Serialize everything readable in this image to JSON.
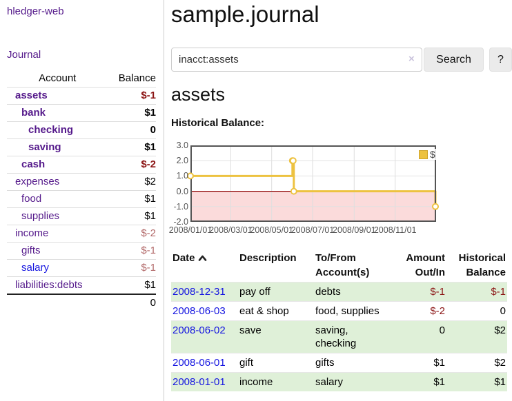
{
  "sidebar": {
    "brand": "hledger-web",
    "nav_journal": "Journal",
    "accounts_table": {
      "col_account": "Account",
      "col_balance": "Balance",
      "rows": [
        {
          "name": "assets",
          "level": 1,
          "bold": true,
          "link": "purple",
          "value": "$-1",
          "vclass": "neg-strong"
        },
        {
          "name": "bank",
          "level": 2,
          "bold": true,
          "link": "purple",
          "value": "$1",
          "vclass": "plain"
        },
        {
          "name": "checking",
          "level": 3,
          "bold": true,
          "link": "purple",
          "value": "0",
          "vclass": "plain"
        },
        {
          "name": "saving",
          "level": 3,
          "bold": true,
          "link": "purple",
          "value": "$1",
          "vclass": "plain"
        },
        {
          "name": "cash",
          "level": 2,
          "bold": true,
          "link": "purple",
          "value": "$-2",
          "vclass": "neg-strong"
        },
        {
          "name": "expenses",
          "level": 1,
          "bold": false,
          "link": "purple",
          "value": "$2",
          "vclass": "plain"
        },
        {
          "name": "food",
          "level": 2,
          "bold": false,
          "link": "purple",
          "value": "$1",
          "vclass": "plain"
        },
        {
          "name": "supplies",
          "level": 2,
          "bold": false,
          "link": "purple",
          "value": "$1",
          "vclass": "plain"
        },
        {
          "name": "income",
          "level": 1,
          "bold": false,
          "link": "purple",
          "value": "$-2",
          "vclass": "neg-muted"
        },
        {
          "name": "gifts",
          "level": 2,
          "bold": false,
          "link": "purple",
          "value": "$-1",
          "vclass": "neg-muted"
        },
        {
          "name": "salary",
          "level": 2,
          "bold": false,
          "link": "blue",
          "value": "$-1",
          "vclass": "neg-muted"
        },
        {
          "name": "liabilities:debts",
          "level": 1,
          "bold": false,
          "link": "purple",
          "value": "$1",
          "vclass": "plain"
        }
      ],
      "total": "0"
    }
  },
  "header": {
    "title": "sample.journal"
  },
  "search": {
    "query": "inacct:assets",
    "clear_icon": "×",
    "button": "Search",
    "help_button": "?"
  },
  "account_page": {
    "heading": "assets",
    "chart_title": "Historical Balance:"
  },
  "chart_data": {
    "type": "line",
    "style": "step",
    "title": "Historical Balance",
    "series": [
      {
        "name": "$",
        "color": "#edc240",
        "points": [
          {
            "date": "2008-01-01",
            "day": 0,
            "value": 1
          },
          {
            "date": "2008-06-01",
            "day": 152,
            "value": 2
          },
          {
            "date": "2008-06-02",
            "day": 153,
            "value": 2
          },
          {
            "date": "2008-06-03",
            "day": 154,
            "value": 0
          },
          {
            "date": "2008-12-31",
            "day": 365,
            "value": -1
          }
        ]
      }
    ],
    "x_ticks": [
      {
        "label": "2008/01/01",
        "day": 0
      },
      {
        "label": "2008/03/01",
        "day": 60
      },
      {
        "label": "2008/05/01",
        "day": 121
      },
      {
        "label": "2008/07/01",
        "day": 182
      },
      {
        "label": "2008/09/01",
        "day": 244
      },
      {
        "label": "2008/11/01",
        "day": 305
      }
    ],
    "x_range_days": [
      0,
      366
    ],
    "y_ticks": [
      3.0,
      2.0,
      1.0,
      0.0,
      -1.0,
      -2.0
    ],
    "ylim": [
      -2,
      3
    ],
    "legend": {
      "label": "$",
      "position": "top-right"
    },
    "grid": true,
    "negative_region_color": "#fbdbdb",
    "zero_line_color": "#8b0000",
    "border_color": "#545454"
  },
  "transactions": {
    "headers": {
      "date": "Date",
      "description": "Description",
      "tofrom": "To/From Account(s)",
      "amount": "Amount Out/In",
      "balance": "Historical Balance"
    },
    "rows": [
      {
        "date": "2008-12-31",
        "description": "pay off",
        "accounts": "debts",
        "amount": "$-1",
        "amount_neg": true,
        "balance": "$-1",
        "balance_neg": true
      },
      {
        "date": "2008-06-03",
        "description": "eat & shop",
        "accounts": "food, supplies",
        "amount": "$-2",
        "amount_neg": true,
        "balance": "0",
        "balance_neg": false
      },
      {
        "date": "2008-06-02",
        "description": "save",
        "accounts": "saving, checking",
        "amount": "0",
        "amount_neg": false,
        "balance": "$2",
        "balance_neg": false
      },
      {
        "date": "2008-06-01",
        "description": "gift",
        "accounts": "gifts",
        "amount": "$1",
        "amount_neg": false,
        "balance": "$2",
        "balance_neg": false
      },
      {
        "date": "2008-01-01",
        "description": "income",
        "accounts": "salary",
        "amount": "$1",
        "amount_neg": false,
        "balance": "$1",
        "balance_neg": false
      }
    ]
  }
}
